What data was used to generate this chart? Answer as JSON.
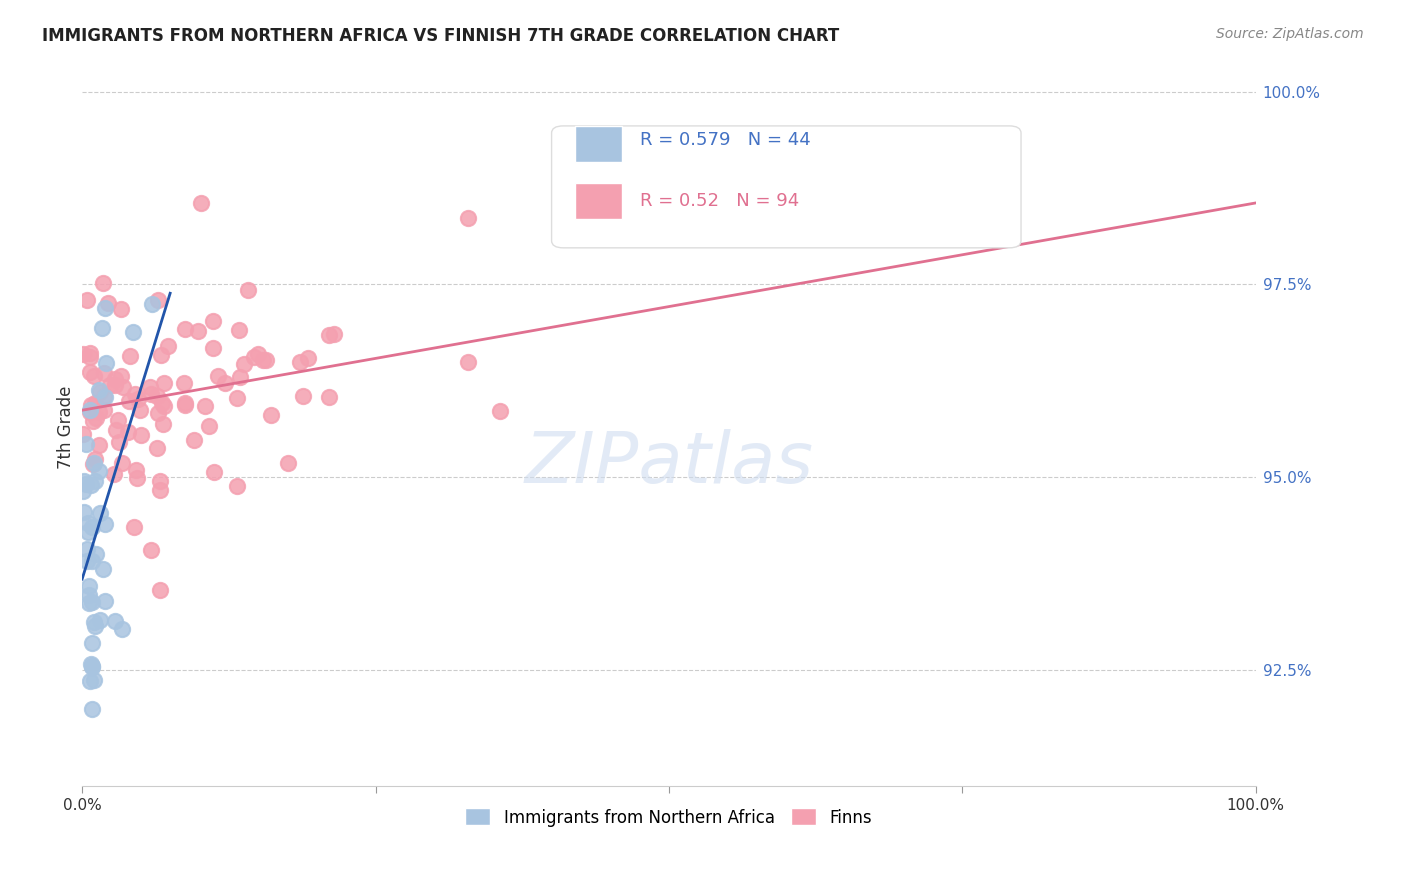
{
  "title": "IMMIGRANTS FROM NORTHERN AFRICA VS FINNISH 7TH GRADE CORRELATION CHART",
  "source": "Source: ZipAtlas.com",
  "ylabel": "7th Grade",
  "legend_blue_label": "Immigrants from Northern Africa",
  "legend_pink_label": "Finns",
  "r_blue": 0.579,
  "n_blue": 44,
  "r_pink": 0.52,
  "n_pink": 94,
  "blue_color": "#a8c4e0",
  "blue_line_color": "#2255aa",
  "pink_color": "#f4a0b0",
  "pink_line_color": "#e07090",
  "right_tick_color": "#4472c4",
  "watermark_color": "#d0ddf0",
  "grid_color": "#cccccc",
  "ylim_low": 0.91,
  "ylim_high": 1.003,
  "xlim_low": 0.0,
  "xlim_high": 1.0,
  "right_yticks": [
    1.0,
    0.975,
    0.95,
    0.925
  ],
  "right_yticklabels": [
    "100.0%",
    "97.5%",
    "95.0%",
    "92.5%"
  ],
  "xtick_positions": [
    0.0,
    0.25,
    0.5,
    0.75,
    1.0
  ],
  "xtick_labels": [
    "0.0%",
    "",
    "",
    "",
    "100.0%"
  ]
}
